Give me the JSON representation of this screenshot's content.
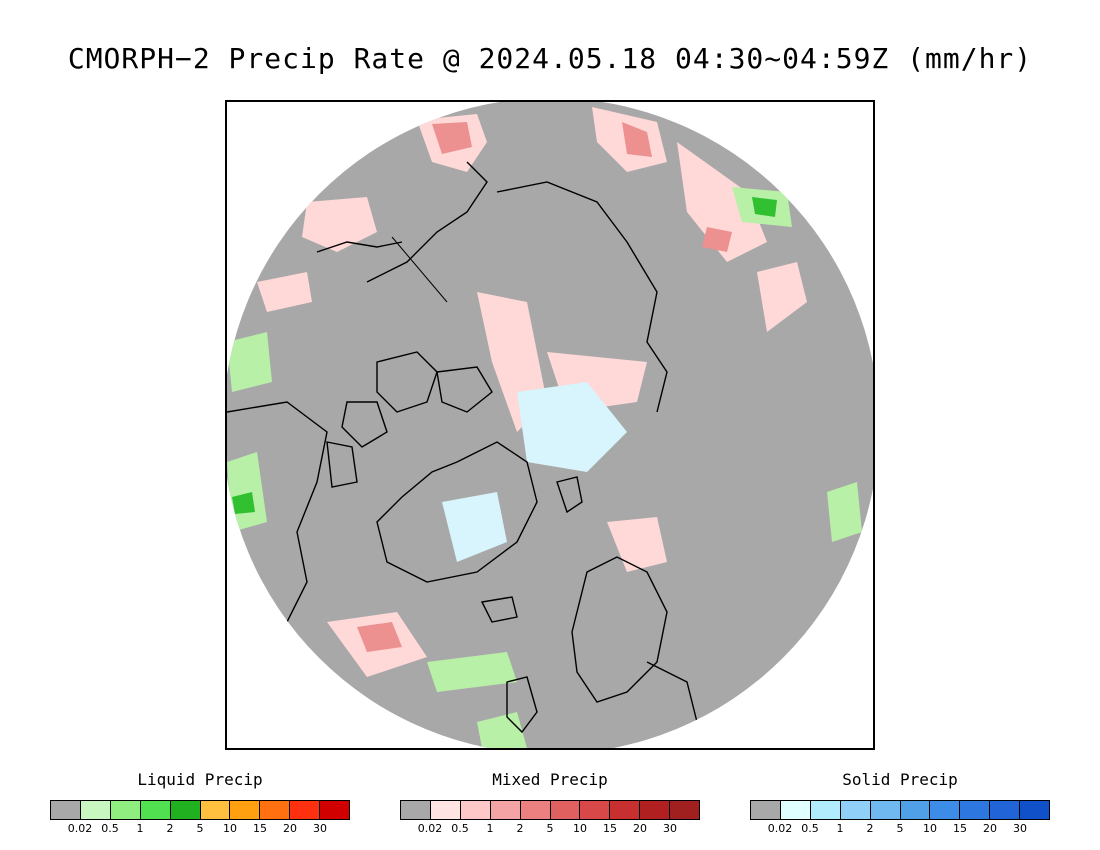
{
  "title": "CMORPH−2 Precip Rate @ 2024.05.18 04:30~04:59Z (mm/hr)",
  "map": {
    "projection": "north polar stereographic",
    "background_color": "#a8a8a8",
    "coastline_color": "#000000"
  },
  "legends": [
    {
      "title": "Liquid Precip",
      "colors": [
        "#a8a8a8",
        "#c8f8c0",
        "#90ee80",
        "#50e050",
        "#20b020",
        "#ffc040",
        "#ffa010",
        "#ff7010",
        "#ff3010",
        "#d00000"
      ],
      "labels": [
        "0.02",
        "0.5",
        "1",
        "2",
        "5",
        "10",
        "15",
        "20",
        "30"
      ]
    },
    {
      "title": "Mixed Precip",
      "colors": [
        "#a8a8a8",
        "#ffe4e4",
        "#ffc8c8",
        "#f4a4a4",
        "#ec8080",
        "#e06060",
        "#d84848",
        "#c83030",
        "#b02020",
        "#a02020"
      ],
      "labels": [
        "0.02",
        "0.5",
        "1",
        "2",
        "5",
        "10",
        "15",
        "20",
        "30"
      ]
    },
    {
      "title": "Solid Precip",
      "colors": [
        "#a8a8a8",
        "#e0ffff",
        "#b0ecfc",
        "#90d0f8",
        "#70b8f0",
        "#50a0e8",
        "#3c8ce8",
        "#2c78e0",
        "#2064d8",
        "#1050c8"
      ],
      "labels": [
        "0.02",
        "0.5",
        "1",
        "2",
        "5",
        "10",
        "15",
        "20",
        "30"
      ]
    }
  ]
}
